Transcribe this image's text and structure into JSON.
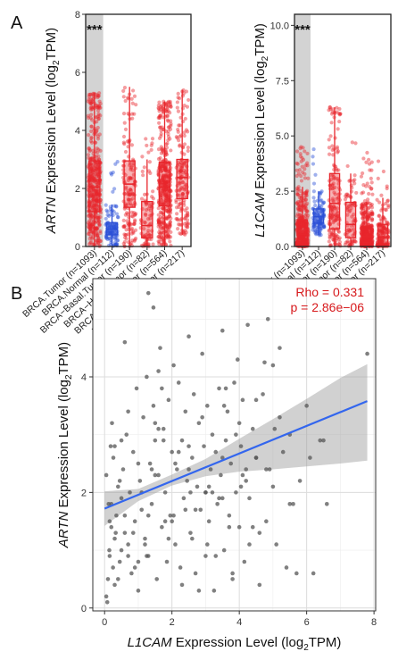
{
  "panel_labels": {
    "a": "A",
    "b": "B"
  },
  "chart_data": [
    {
      "type": "box",
      "id": "artn-box",
      "ylabel_gene": "ARTN",
      "ylabel_rest": " Expression Level (log",
      "ylabel_sub": "2",
      "ylabel_end": "TPM)",
      "ylim": [
        0,
        8
      ],
      "yticks": [
        0,
        2,
        4,
        6,
        8
      ],
      "significance": "***",
      "categories": [
        "BRCA.Tumor (n=1093)",
        "BRCA.Normal (n=112)",
        "BRCA−Basal.Tumor (n=190)",
        "BRCA−Her2.Tumor (n=82)",
        "BRCA−LumA.Tumor (n=564)",
        "BRCA−LumB.Tumor (n=217)"
      ],
      "boxes": [
        {
          "q1": 1.2,
          "median": 2.05,
          "q3": 2.95,
          "wlo": 0.0,
          "whi": 5.3,
          "n": 1093
        },
        {
          "q1": 0.4,
          "median": 0.6,
          "q3": 0.82,
          "wlo": 0.0,
          "whi": 1.45,
          "n": 112
        },
        {
          "q1": 1.35,
          "median": 2.15,
          "q3": 2.95,
          "wlo": 0.0,
          "whi": 5.5,
          "n": 190
        },
        {
          "q1": 0.3,
          "median": 0.72,
          "q3": 1.55,
          "wlo": 0.0,
          "whi": 3.0,
          "n": 82
        },
        {
          "q1": 1.4,
          "median": 2.05,
          "q3": 2.9,
          "wlo": 0.0,
          "whi": 5.0,
          "n": 564
        },
        {
          "q1": 1.65,
          "median": 2.38,
          "q3": 3.0,
          "wlo": 0.4,
          "whi": 5.4,
          "n": 217
        }
      ],
      "colors": [
        "#e8262c",
        "#2b4fd6",
        "#e8262c",
        "#e8262c",
        "#e8262c",
        "#e8262c"
      ]
    },
    {
      "type": "box",
      "id": "l1cam-box",
      "ylabel_gene": "L1CAM",
      "ylabel_rest": " Expression Level (log",
      "ylabel_sub": "2",
      "ylabel_end": "TPM)",
      "ylim": [
        0,
        10.5
      ],
      "yticks": [
        0.0,
        2.5,
        5.0,
        7.5,
        10.0
      ],
      "ytick_labels": [
        "0.0",
        "2.5",
        "5.0",
        "7.5",
        "10.0"
      ],
      "significance": "***",
      "categories": [
        "BRCA.Tumor (n=1093)",
        "BRCA.Normal (n=112)",
        "BRCA−Basal.Tumor (n=190)",
        "BRCA−Her2.Tumor (n=82)",
        "BRCA−LumA.Tumor (n=564)",
        "BRCA−LumB.Tumor (n=217)"
      ],
      "boxes": [
        {
          "q1": 0.2,
          "median": 0.55,
          "q3": 1.2,
          "wlo": 0.0,
          "whi": 2.7,
          "n": 1093
        },
        {
          "q1": 1.05,
          "median": 1.35,
          "q3": 1.7,
          "wlo": 0.5,
          "whi": 2.5,
          "n": 112
        },
        {
          "q1": 0.8,
          "median": 1.95,
          "q3": 3.3,
          "wlo": 0.0,
          "whi": 6.3,
          "n": 190
        },
        {
          "q1": 0.4,
          "median": 1.0,
          "q3": 2.0,
          "wlo": 0.0,
          "whi": 3.3,
          "n": 82
        },
        {
          "q1": 0.18,
          "median": 0.45,
          "q3": 0.9,
          "wlo": 0.0,
          "whi": 2.0,
          "n": 564
        },
        {
          "q1": 0.12,
          "median": 0.42,
          "q3": 1.0,
          "wlo": 0.0,
          "whi": 2.2,
          "n": 217
        }
      ],
      "colors": [
        "#e8262c",
        "#2b4fd6",
        "#e8262c",
        "#e8262c",
        "#e8262c",
        "#e8262c"
      ]
    },
    {
      "type": "scatter",
      "id": "correlation",
      "xlabel_gene": "L1CAM",
      "xlabel_rest": " Expression Level (log",
      "xlabel_sub": "2",
      "xlabel_end": "TPM)",
      "ylabel_gene": "ARTN",
      "ylabel_rest": " Expression Level (log",
      "ylabel_sub": "2",
      "ylabel_end": "TPM)",
      "xlim": [
        -0.35,
        8.05
      ],
      "ylim": [
        -0.05,
        5.7
      ],
      "xticks": [
        0,
        2,
        4,
        6,
        8
      ],
      "yticks": [
        0,
        2,
        4
      ],
      "grid": true,
      "rho": "Rho = 0.331",
      "pvalue": "p = 2.86e−06",
      "fit_line": {
        "x": [
          0,
          7.8
        ],
        "y": [
          1.72,
          3.58
        ]
      },
      "ci_band": {
        "x": [
          0,
          1,
          2,
          3,
          4,
          5,
          6,
          7,
          7.8
        ],
        "lower": [
          1.42,
          1.85,
          2.12,
          2.28,
          2.36,
          2.4,
          2.45,
          2.5,
          2.55
        ],
        "upper": [
          2.02,
          2.06,
          2.31,
          2.58,
          2.93,
          3.27,
          3.62,
          3.98,
          4.22
        ]
      },
      "points": {
        "x": [
          0.05,
          0.1,
          0.15,
          0.2,
          0.25,
          0.3,
          0.05,
          0.12,
          0.18,
          0.22,
          0.3,
          0.35,
          0.4,
          0.08,
          0.14,
          0.26,
          0.33,
          0.45,
          0.5,
          0.55,
          0.6,
          0.65,
          0.7,
          0.75,
          0.8,
          0.85,
          0.9,
          0.95,
          1.0,
          1.05,
          1.1,
          1.15,
          1.2,
          1.25,
          1.3,
          1.35,
          1.4,
          1.45,
          1.5,
          1.55,
          1.6,
          1.65,
          1.7,
          1.75,
          1.8,
          1.85,
          1.9,
          1.95,
          2.0,
          2.05,
          2.1,
          2.15,
          2.2,
          2.25,
          2.3,
          2.35,
          2.4,
          2.45,
          2.5,
          2.55,
          2.6,
          2.65,
          2.7,
          2.75,
          2.8,
          2.85,
          2.9,
          2.95,
          3.0,
          3.05,
          3.1,
          3.15,
          3.2,
          3.25,
          3.3,
          3.35,
          3.4,
          3.45,
          3.5,
          3.55,
          3.6,
          3.65,
          3.7,
          3.75,
          3.8,
          3.85,
          3.9,
          3.95,
          4.0,
          4.05,
          4.1,
          4.15,
          4.2,
          4.25,
          4.3,
          4.4,
          4.5,
          4.6,
          4.7,
          4.8,
          4.9,
          5.0,
          5.1,
          5.2,
          5.3,
          5.4,
          5.5,
          5.6,
          5.8,
          6.0,
          6.2,
          6.4,
          6.6,
          7.8,
          0.4,
          0.5,
          0.6,
          0.7,
          0.9,
          1.1,
          1.3,
          1.5,
          1.7,
          1.9,
          2.1,
          2.3,
          2.5,
          2.7,
          2.9,
          3.1,
          3.3,
          3.5,
          3.7,
          3.9,
          4.1,
          4.3,
          4.5,
          0.2,
          0.6,
          1.0,
          1.4,
          1.8,
          2.2,
          2.6,
          3.0,
          3.4,
          3.8,
          4.2,
          4.6,
          5.0,
          0.3,
          0.7,
          1.2,
          1.6,
          2.4,
          2.8,
          3.2,
          3.6,
          4.4,
          4.8,
          5.2,
          5.7,
          6.1,
          6.5,
          0.15,
          0.45,
          0.85,
          1.25,
          1.75,
          2.05,
          2.55,
          3.05,
          3.55,
          4.05,
          0.5,
          1.0,
          1.5,
          2.0,
          2.5,
          3.0,
          3.5,
          4.0,
          4.5,
          5.5,
          1.3,
          1.45,
          1.6,
          4.75,
          4.85,
          5.05
        ],
        "y": [
          0.2,
          0.5,
          0.9,
          1.4,
          0.7,
          1.2,
          2.3,
          1.8,
          2.8,
          3.2,
          0.4,
          1.6,
          2.1,
          0.1,
          1.0,
          2.6,
          1.3,
          0.8,
          1.9,
          2.4,
          4.6,
          3.0,
          1.1,
          2.0,
          0.6,
          2.7,
          1.5,
          3.8,
          0.3,
          2.2,
          1.7,
          3.3,
          1.2,
          4.0,
          0.9,
          2.5,
          1.8,
          3.5,
          2.9,
          0.5,
          2.3,
          4.5,
          1.4,
          3.1,
          2.0,
          0.8,
          3.6,
          1.6,
          2.7,
          4.2,
          1.1,
          2.4,
          3.9,
          0.7,
          2.9,
          1.9,
          3.4,
          2.2,
          4.7,
          1.3,
          2.6,
          3.7,
          0.6,
          2.1,
          3.2,
          1.7,
          4.4,
          2.8,
          0.9,
          3.5,
          1.5,
          2.4,
          3.0,
          0.3,
          2.7,
          1.8,
          3.8,
          2.3,
          4.8,
          1.0,
          2.9,
          3.4,
          1.6,
          2.5,
          0.5,
          3.9,
          2.0,
          4.3,
          1.4,
          2.8,
          3.6,
          0.8,
          2.2,
          4.9,
          1.9,
          3.1,
          2.6,
          0.4,
          3.7,
          1.5,
          2.4,
          4.2,
          1.1,
          3.3,
          2.7,
          0.7,
          3.0,
          1.8,
          2.2,
          3.5,
          0.6,
          2.9,
          1.8,
          4.4,
          0.5,
          2.9,
          1.3,
          3.4,
          0.7,
          2.0,
          1.6,
          2.3,
          3.8,
          1.2,
          2.5,
          0.4,
          2.8,
          1.7,
          3.3,
          2.1,
          0.9,
          2.6,
          1.4,
          3.0,
          2.3,
          1.1,
          3.6,
          1.8,
          1.6,
          0.8,
          2.4,
          1.5,
          2.7,
          1.2,
          2.0,
          1.9,
          0.6,
          2.4,
          1.3,
          2.1,
          2.8,
          0.9,
          1.1,
          3.1,
          1.7,
          0.3,
          2.0,
          3.8,
          1.4,
          2.4,
          4.5,
          0.6,
          2.6,
          2.9,
          1.5,
          2.2,
          1.3,
          0.9,
          2.9,
          1.6,
          2.0,
          1.1,
          3.5,
          2.1,
          1.0,
          2.5,
          3.2,
          1.5,
          2.4,
          2.0,
          1.9,
          3.2,
          2.6,
          1.8,
          5.45,
          5.2,
          4.1,
          4.25,
          5.0,
          3.1
        ]
      }
    }
  ]
}
